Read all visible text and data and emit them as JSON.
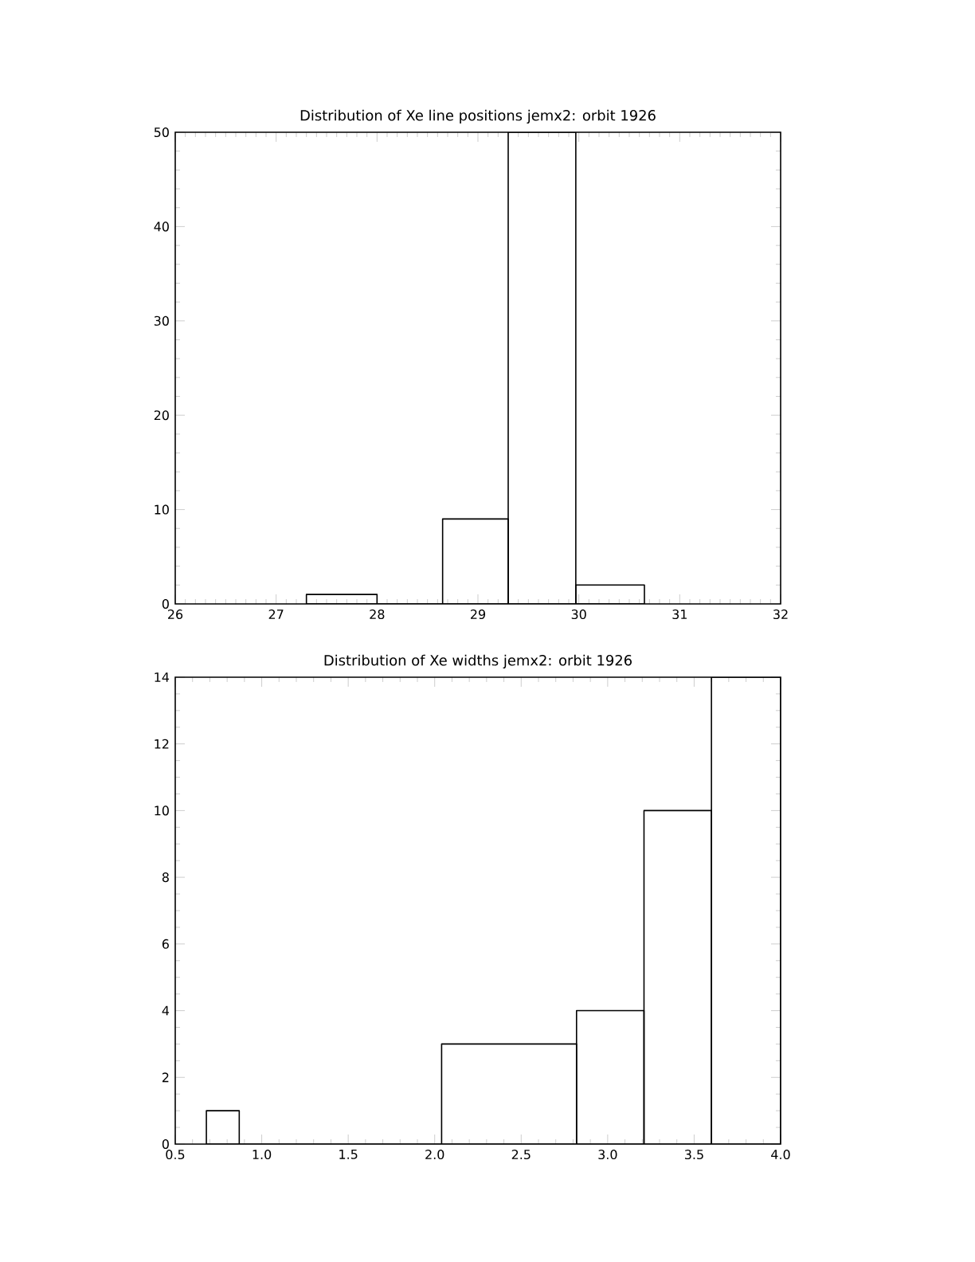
{
  "chart_data": [
    {
      "type": "histogram",
      "title": "Distribution of Xe line positions jemx2: orbit 1926",
      "bins": [
        27.3,
        28.0,
        28.65,
        29.3,
        29.97,
        30.65
      ],
      "values": [
        1,
        0,
        9,
        50,
        2
      ],
      "color": "#000000",
      "xlim": [
        26,
        32
      ],
      "ylim": [
        0,
        50
      ],
      "xticks": [
        26,
        27,
        28,
        29,
        30,
        31,
        32
      ],
      "yticks": [
        0,
        10,
        20,
        30,
        40,
        50
      ]
    },
    {
      "type": "histogram",
      "title": "Distribution of Xe widths jemx2: orbit 1926",
      "bins": [
        0.68,
        0.87,
        2.04,
        2.82,
        3.21,
        3.6,
        4.0
      ],
      "values": [
        1,
        0,
        3,
        4,
        10,
        14
      ],
      "color": "#000000",
      "xlim": [
        0.5,
        4.0
      ],
      "ylim": [
        0,
        14
      ],
      "xticks": [
        {
          "value": 0.5,
          "label": "0.5"
        },
        {
          "value": 1,
          "label": "1.0"
        },
        {
          "value": 1.5,
          "label": "1.5"
        },
        {
          "value": 2,
          "label": "2.0"
        },
        {
          "value": 2.5,
          "label": "2.5"
        },
        {
          "value": 3,
          "label": "3.0"
        },
        {
          "value": 3.5,
          "label": "3.5"
        },
        {
          "value": 4,
          "label": "4.0"
        }
      ],
      "yticks": [
        0,
        2,
        4,
        6,
        8,
        10,
        12,
        14
      ]
    }
  ]
}
